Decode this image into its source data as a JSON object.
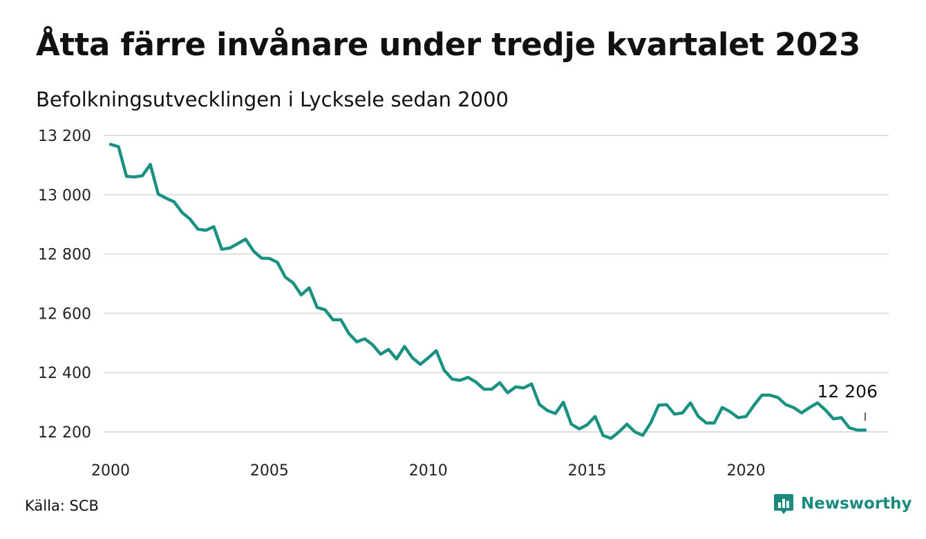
{
  "header": {
    "title": "Åtta färre invånare under tredje kvartalet 2023",
    "subtitle": "Befolkningsutvecklingen i Lycksele sedan 2000"
  },
  "footer": {
    "source": "Källa: SCB",
    "brand": "Newsworthy"
  },
  "colors": {
    "line": "#1a9183",
    "grid": "#dddddd",
    "brand": "#1a8a7e"
  },
  "chart_data": {
    "type": "line",
    "title": "Åtta färre invånare under tredje kvartalet 2023",
    "subtitle": "Befolkningsutvecklingen i Lycksele sedan 2000",
    "x_range": [
      2000,
      2023.75
    ],
    "ylim": [
      12178,
      13200
    ],
    "y_ticks": [
      12200,
      12400,
      12600,
      12800,
      13000,
      13200
    ],
    "y_tick_labels": [
      "12 200",
      "12 400",
      "12 600",
      "12 800",
      "13 000",
      "13 200"
    ],
    "x_ticks": [
      2000,
      2005,
      2010,
      2015,
      2020
    ],
    "x_tick_labels": [
      "2000",
      "2005",
      "2010",
      "2015",
      "2020"
    ],
    "grid": "horizontal",
    "series": [
      {
        "x": [
          2000.0,
          2000.25,
          2000.5,
          2000.75,
          2001.0,
          2001.25,
          2001.5,
          2001.75,
          2002.0,
          2002.25,
          2002.5,
          2002.75,
          2003.0,
          2003.25,
          2003.5,
          2003.75,
          2004.0,
          2004.25,
          2004.5,
          2004.75,
          2005.0,
          2005.25,
          2005.5,
          2005.75,
          2006.0,
          2006.25,
          2006.5,
          2006.75,
          2007.0,
          2007.25,
          2007.5,
          2007.75,
          2008.0,
          2008.25,
          2008.5,
          2008.75,
          2009.0,
          2009.25,
          2009.5,
          2009.75,
          2010.0,
          2010.25,
          2010.5,
          2010.75,
          2011.0,
          2011.25,
          2011.5,
          2011.75,
          2012.0,
          2012.25,
          2012.5,
          2012.75,
          2013.0,
          2013.25,
          2013.5,
          2013.75,
          2014.0,
          2014.25,
          2014.5,
          2014.75,
          2015.0,
          2015.25,
          2015.5,
          2015.75,
          2016.0,
          2016.25,
          2016.5,
          2016.75,
          2017.0,
          2017.25,
          2017.5,
          2017.75,
          2018.0,
          2018.25,
          2018.5,
          2018.75,
          2019.0,
          2019.25,
          2019.5,
          2019.75,
          2020.0,
          2020.25,
          2020.5,
          2020.75,
          2021.0,
          2021.25,
          2021.5,
          2021.75,
          2022.0,
          2022.25,
          2022.5,
          2022.75,
          2023.0,
          2023.25,
          2023.5,
          2023.75
        ],
        "values": [
          13170,
          13162,
          13062,
          13060,
          13064,
          13102,
          13002,
          12988,
          12976,
          12940,
          12918,
          12884,
          12880,
          12892,
          12816,
          12820,
          12835,
          12850,
          12810,
          12786,
          12785,
          12772,
          12722,
          12702,
          12662,
          12686,
          12620,
          12612,
          12578,
          12578,
          12532,
          12504,
          12514,
          12494,
          12462,
          12478,
          12446,
          12488,
          12450,
          12428,
          12450,
          12474,
          12408,
          12378,
          12374,
          12384,
          12368,
          12344,
          12344,
          12366,
          12332,
          12352,
          12348,
          12362,
          12292,
          12272,
          12262,
          12300,
          12226,
          12210,
          12224,
          12252,
          12188,
          12178,
          12200,
          12226,
          12200,
          12188,
          12230,
          12290,
          12292,
          12260,
          12264,
          12298,
          12252,
          12230,
          12230,
          12282,
          12268,
          12248,
          12252,
          12290,
          12324,
          12324,
          12316,
          12292,
          12282,
          12264,
          12282,
          12298,
          12274,
          12244,
          12248,
          12214,
          12206,
          12206
        ]
      }
    ],
    "annotations": [
      {
        "text": "12 206",
        "x": 2023.75,
        "y": 12206
      }
    ]
  }
}
